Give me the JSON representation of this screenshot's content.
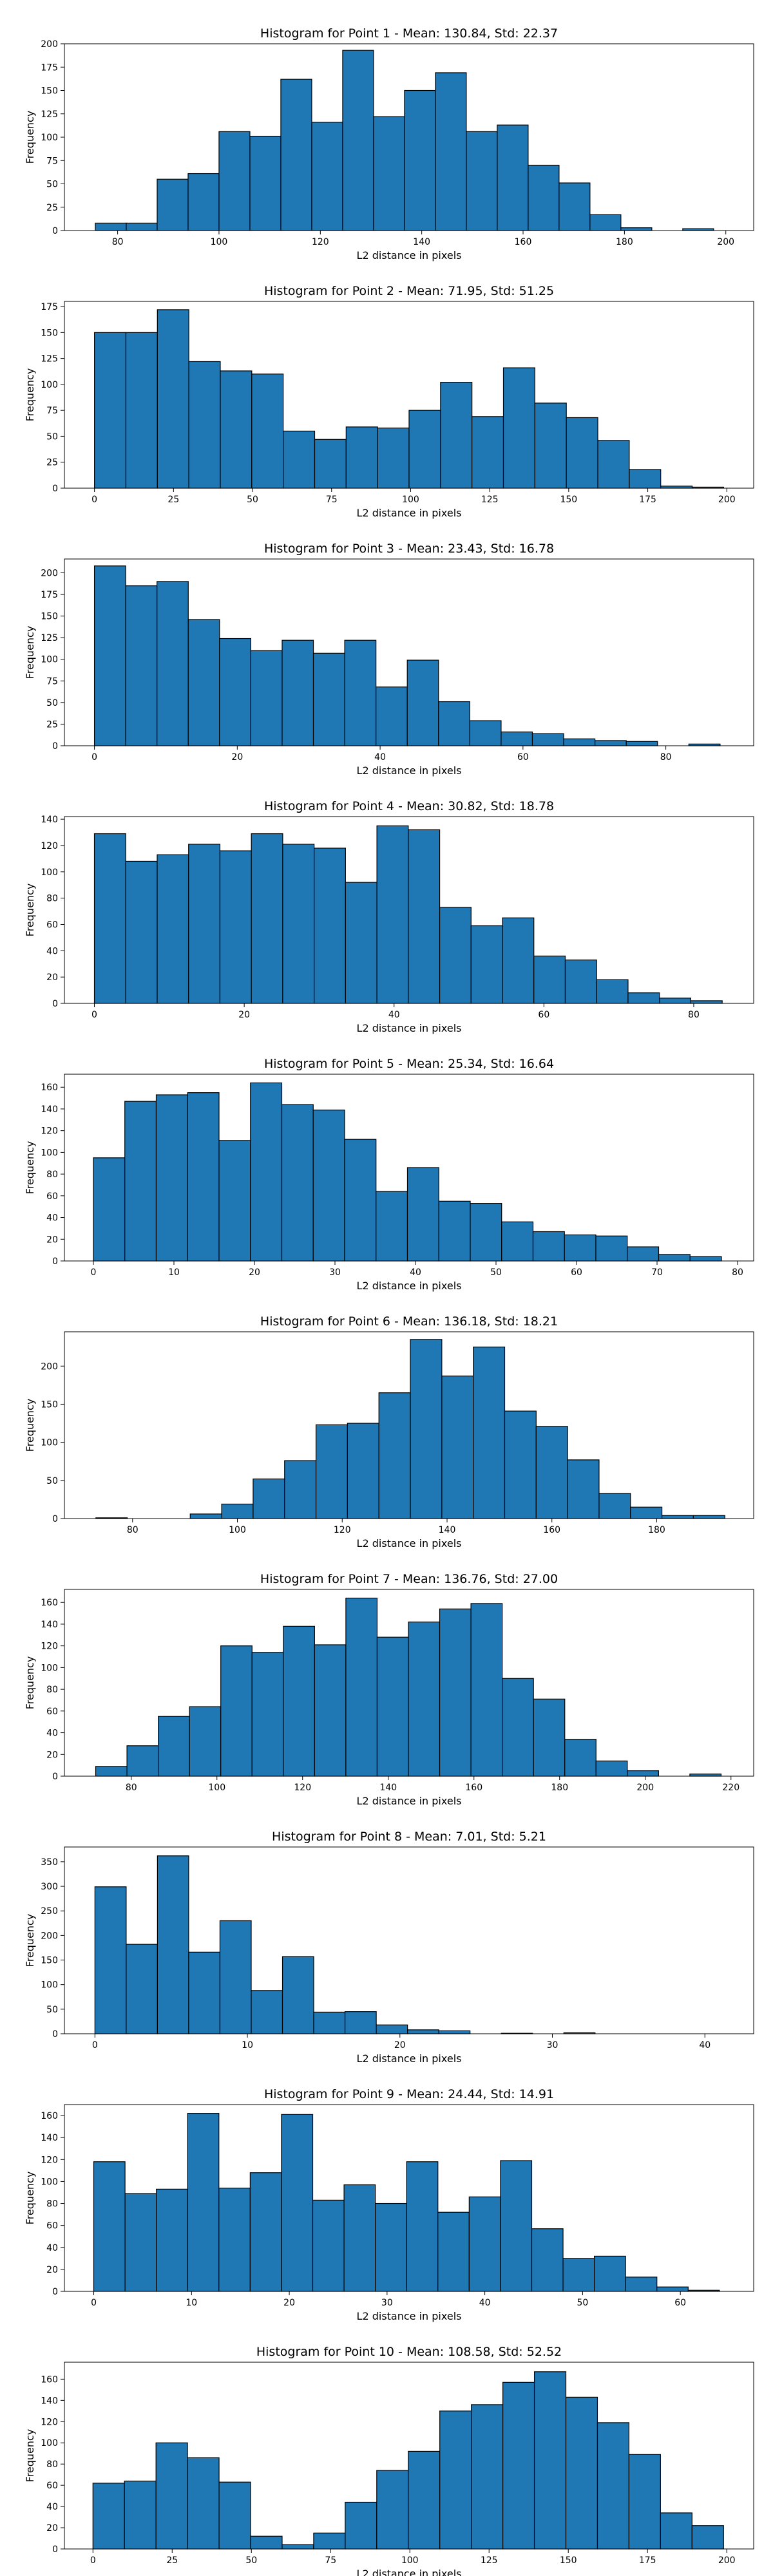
{
  "chart_data": [
    {
      "type": "bar",
      "title": "Histogram for Point 1 - Mean: 130.84, Std: 22.37",
      "xlabel": "L2 distance in pixels",
      "ylabel": "Frequency",
      "xlim": [
        69.5,
        205.5
      ],
      "ylim": [
        0,
        200
      ],
      "xticks": [
        80,
        100,
        120,
        140,
        160,
        180,
        200
      ],
      "yticks": [
        0,
        25,
        50,
        75,
        100,
        125,
        150,
        175,
        200
      ],
      "bin_start": 75.6,
      "bin_width": 6.1,
      "values": [
        8,
        8,
        55,
        61,
        106,
        101,
        162,
        116,
        193,
        122,
        150,
        169,
        106,
        113,
        70,
        51,
        17,
        3,
        0,
        2
      ],
      "bar_color": "#1f77b4",
      "grid": false
    },
    {
      "type": "bar",
      "title": "Histogram for Point 2 - Mean: 71.95, Std: 51.25",
      "xlabel": "L2 distance in pixels",
      "ylabel": "Frequency",
      "xlim": [
        -9.5,
        208.5
      ],
      "ylim": [
        0,
        180
      ],
      "xticks": [
        0,
        25,
        50,
        75,
        100,
        125,
        150,
        175,
        200
      ],
      "yticks": [
        0,
        25,
        50,
        75,
        100,
        125,
        150,
        175
      ],
      "bin_start": 0,
      "bin_width": 9.95,
      "values": [
        150,
        150,
        172,
        122,
        113,
        110,
        55,
        47,
        59,
        58,
        75,
        102,
        69,
        116,
        82,
        68,
        46,
        18,
        2,
        1
      ],
      "bar_color": "#1f77b4",
      "grid": false
    },
    {
      "type": "bar",
      "title": "Histogram for Point 3 - Mean: 23.43, Std: 16.78",
      "xlabel": "L2 distance in pixels",
      "ylabel": "Frequency",
      "xlim": [
        -4.2,
        92.3
      ],
      "ylim": [
        0,
        216
      ],
      "xticks": [
        0,
        20,
        40,
        60,
        80
      ],
      "yticks": [
        0,
        25,
        50,
        75,
        100,
        125,
        150,
        175,
        200
      ],
      "bin_start": 0,
      "bin_width": 4.38,
      "values": [
        208,
        185,
        190,
        146,
        124,
        110,
        122,
        107,
        122,
        68,
        99,
        51,
        29,
        16,
        14,
        8,
        6,
        5,
        0,
        2
      ],
      "bar_color": "#1f77b4",
      "grid": false
    },
    {
      "type": "bar",
      "title": "Histogram for Point 4 - Mean: 30.82, Std: 18.78",
      "xlabel": "L2 distance in pixels",
      "ylabel": "Frequency",
      "xlim": [
        -4.0,
        88.0
      ],
      "ylim": [
        0,
        142
      ],
      "xticks": [
        0,
        20,
        40,
        60,
        80
      ],
      "yticks": [
        0,
        20,
        40,
        60,
        80,
        100,
        120,
        140
      ],
      "bin_start": 0,
      "bin_width": 4.19,
      "values": [
        129,
        108,
        113,
        121,
        116,
        129,
        121,
        118,
        92,
        135,
        132,
        73,
        59,
        65,
        36,
        33,
        18,
        8,
        4,
        2
      ],
      "bar_color": "#1f77b4",
      "grid": false
    },
    {
      "type": "bar",
      "title": "Histogram for Point 5 - Mean: 25.34, Std: 16.64",
      "xlabel": "L2 distance in pixels",
      "ylabel": "Frequency",
      "xlim": [
        -3.6,
        82.0
      ],
      "ylim": [
        0,
        172
      ],
      "xticks": [
        0,
        10,
        20,
        30,
        40,
        50,
        60,
        70,
        80
      ],
      "yticks": [
        0,
        20,
        40,
        60,
        80,
        100,
        120,
        140,
        160
      ],
      "bin_start": 0,
      "bin_width": 3.9,
      "values": [
        95,
        147,
        153,
        155,
        111,
        164,
        144,
        139,
        112,
        64,
        86,
        55,
        53,
        36,
        27,
        24,
        23,
        13,
        6,
        4
      ],
      "bar_color": "#1f77b4",
      "grid": false
    },
    {
      "type": "bar",
      "title": "Histogram for Point 6 - Mean: 136.18, Std: 18.21",
      "xlabel": "L2 distance in pixels",
      "ylabel": "Frequency",
      "xlim": [
        67.0,
        198.5
      ],
      "ylim": [
        0,
        245
      ],
      "xticks": [
        80,
        100,
        120,
        140,
        160,
        180
      ],
      "yticks": [
        0,
        50,
        100,
        150,
        200
      ],
      "bin_start": 73.0,
      "bin_width": 6.0,
      "values": [
        1,
        0,
        0,
        6,
        19,
        52,
        76,
        123,
        125,
        165,
        235,
        187,
        225,
        141,
        121,
        77,
        33,
        15,
        4,
        4
      ],
      "bar_color": "#1f77b4",
      "grid": false
    },
    {
      "type": "bar",
      "title": "Histogram for Point 7 - Mean: 136.76, Std: 27.00",
      "xlabel": "L2 distance in pixels",
      "ylabel": "Frequency",
      "xlim": [
        64.4,
        225.3
      ],
      "ylim": [
        0,
        172
      ],
      "xticks": [
        80,
        100,
        120,
        140,
        160,
        180,
        200,
        220
      ],
      "yticks": [
        0,
        20,
        40,
        60,
        80,
        100,
        120,
        140,
        160
      ],
      "bin_start": 71.7,
      "bin_width": 7.3,
      "values": [
        9,
        28,
        55,
        64,
        120,
        114,
        138,
        121,
        164,
        128,
        142,
        154,
        159,
        90,
        71,
        34,
        14,
        5,
        0,
        2
      ],
      "bar_color": "#1f77b4",
      "grid": false
    },
    {
      "type": "bar",
      "title": "Histogram for Point 8 - Mean: 7.01, Std: 5.21",
      "xlabel": "L2 distance in pixels",
      "ylabel": "Frequency",
      "xlim": [
        -2.0,
        43.2
      ],
      "ylim": [
        0,
        380
      ],
      "xticks": [
        0,
        10,
        20,
        30,
        40
      ],
      "yticks": [
        0,
        50,
        100,
        150,
        200,
        250,
        300,
        350
      ],
      "bin_start": 0,
      "bin_width": 2.05,
      "values": [
        299,
        182,
        362,
        166,
        230,
        88,
        157,
        44,
        45,
        18,
        8,
        6,
        0,
        1,
        0,
        2,
        0,
        0,
        0,
        0
      ],
      "bar_color": "#1f77b4",
      "grid": false
    },
    {
      "type": "bar",
      "title": "Histogram for Point 9 - Mean: 24.44, Std: 14.91",
      "xlabel": "L2 distance in pixels",
      "ylabel": "Frequency",
      "xlim": [
        -3.0,
        67.5
      ],
      "ylim": [
        0,
        170
      ],
      "xticks": [
        0,
        10,
        20,
        30,
        40,
        50,
        60
      ],
      "yticks": [
        0,
        20,
        40,
        60,
        80,
        100,
        120,
        140,
        160
      ],
      "bin_start": 0,
      "bin_width": 3.2,
      "values": [
        118,
        89,
        93,
        162,
        94,
        108,
        161,
        83,
        97,
        80,
        118,
        72,
        86,
        119,
        57,
        30,
        32,
        13,
        4,
        1
      ],
      "bar_color": "#1f77b4",
      "grid": false
    },
    {
      "type": "bar",
      "title": "Histogram for Point 10 - Mean: 108.58, Std: 52.52",
      "xlabel": "L2 distance in pixels",
      "ylabel": "Frequency",
      "xlim": [
        -9.0,
        208.5
      ],
      "ylim": [
        0,
        176
      ],
      "xticks": [
        0,
        25,
        50,
        75,
        100,
        125,
        150,
        175,
        200
      ],
      "yticks": [
        0,
        20,
        40,
        60,
        80,
        100,
        120,
        140,
        160
      ],
      "bin_start": 0,
      "bin_width": 9.95,
      "values": [
        62,
        64,
        100,
        86,
        63,
        12,
        4,
        15,
        44,
        74,
        92,
        130,
        136,
        157,
        167,
        143,
        119,
        89,
        34,
        22
      ],
      "bar_color": "#1f77b4",
      "grid": false
    }
  ]
}
